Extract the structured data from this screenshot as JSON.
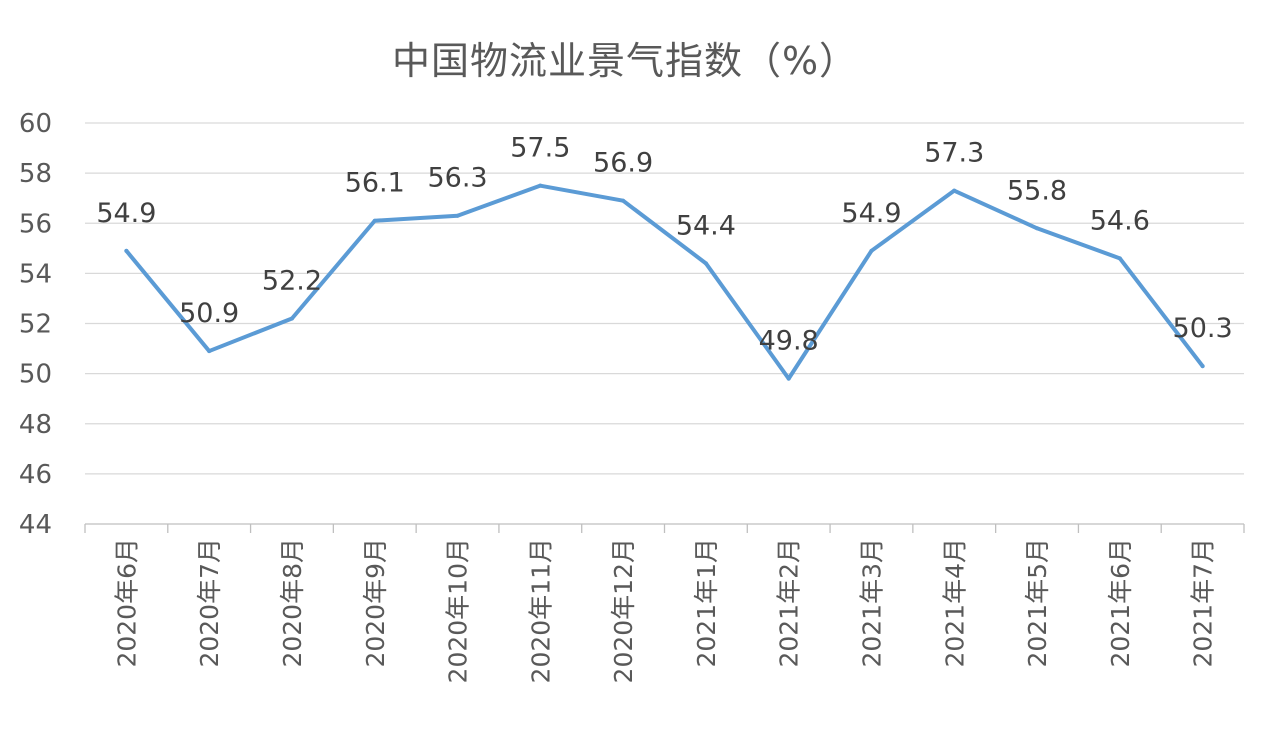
{
  "chart_data": {
    "type": "line",
    "title": "中国物流业景气指数（%）",
    "xlabel": "",
    "ylabel": "",
    "categories": [
      "2020年6月",
      "2020年7月",
      "2020年8月",
      "2020年9月",
      "2020年10月",
      "2020年11月",
      "2020年12月",
      "2021年1月",
      "2021年2月",
      "2021年3月",
      "2021年4月",
      "2021年5月",
      "2021年6月",
      "2021年7月"
    ],
    "series": [
      {
        "values": [
          54.9,
          50.9,
          52.2,
          56.1,
          56.3,
          57.5,
          56.9,
          54.4,
          49.8,
          54.9,
          57.3,
          55.8,
          54.6,
          50.3
        ],
        "color": "#5b9bd5"
      }
    ],
    "data_labels": [
      "54.9",
      "50.9",
      "52.2",
      "56.1",
      "56.3",
      "57.5",
      "56.9",
      "54.4",
      "49.8",
      "54.9",
      "57.3",
      "55.8",
      "54.6",
      "50.3"
    ],
    "ylim": [
      44,
      60
    ],
    "yticks": [
      "44",
      "46",
      "48",
      "50",
      "52",
      "54",
      "56",
      "58",
      "60"
    ],
    "grid": true,
    "legend": "none"
  }
}
